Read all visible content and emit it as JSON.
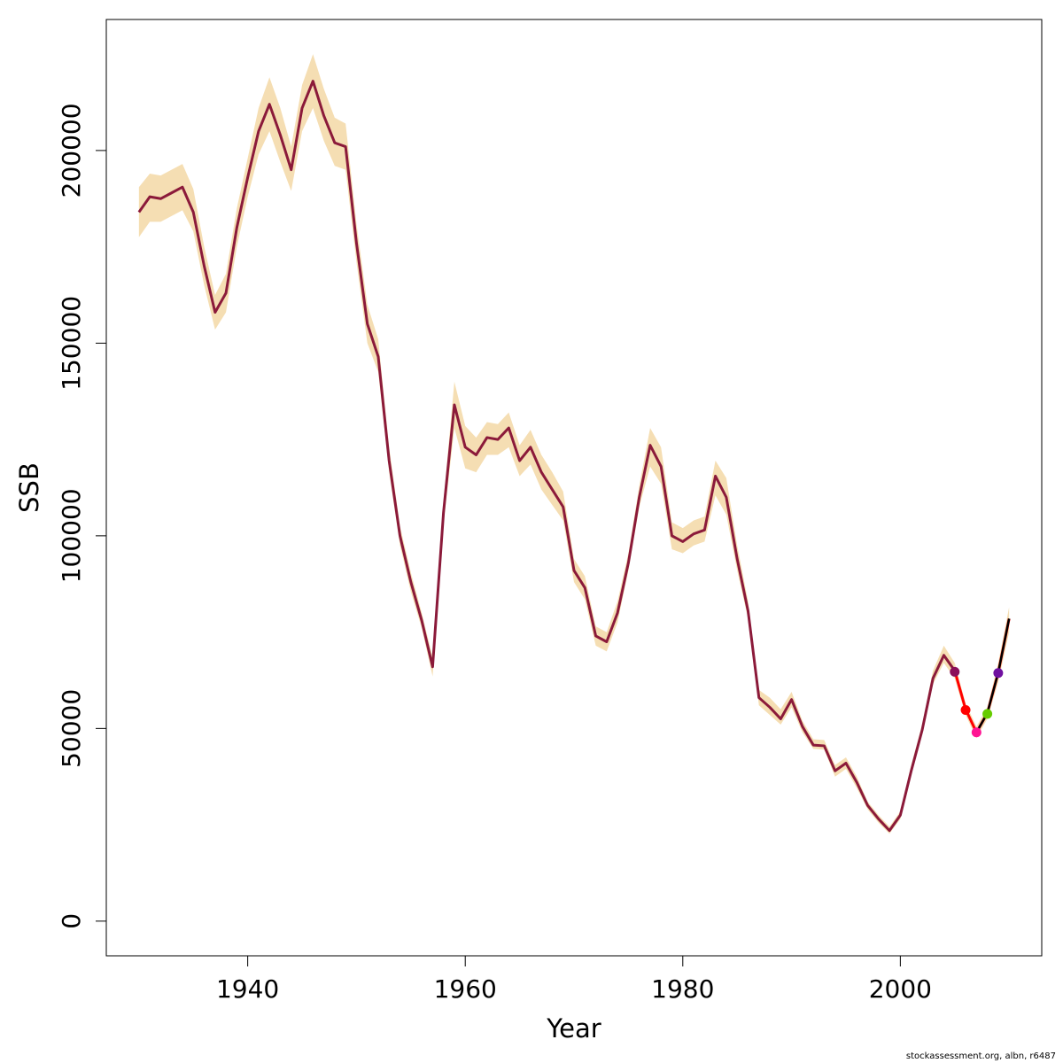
{
  "chart_data": {
    "type": "line",
    "xlabel": "Year",
    "ylabel": "SSB",
    "xlim": [
      1927,
      2013
    ],
    "ylim": [
      -9000,
      234000
    ],
    "x_ticks": [
      1940,
      1960,
      1980,
      2000
    ],
    "x_tick_labels": [
      "1940",
      "1960",
      "1980",
      "2000"
    ],
    "y_ticks": [
      0,
      50000,
      100000,
      150000,
      200000
    ],
    "y_tick_labels": [
      "0",
      "50000",
      "100000",
      "150000",
      "200000"
    ],
    "grid": false,
    "colors": {
      "line": "#8b1a3a",
      "band": "#f5deb3",
      "projection": "#000000",
      "projection_red": "#ff0000"
    },
    "series": [
      {
        "x": [
          1930,
          1931,
          1932,
          1933,
          1934,
          1935,
          1936,
          1937,
          1938,
          1939,
          1940,
          1941,
          1942,
          1943,
          1944,
          1945,
          1946,
          1947,
          1948,
          1949,
          1950,
          1951,
          1952,
          1953,
          1954,
          1955,
          1956,
          1957,
          1958,
          1959,
          1960,
          1961,
          1962,
          1963,
          1964,
          1965,
          1966,
          1967,
          1968,
          1969,
          1970,
          1971,
          1972,
          1973,
          1974,
          1975,
          1976,
          1977,
          1978,
          1979,
          1980,
          1981,
          1982,
          1983,
          1984,
          1985,
          1986,
          1987,
          1988,
          1989,
          1990,
          1991,
          1992,
          1993,
          1994,
          1995,
          1996,
          1997,
          1998,
          1999,
          2000,
          2001,
          2002,
          2003,
          2004,
          2005
        ],
        "values": [
          184000,
          188000,
          187500,
          189000,
          190500,
          184000,
          170000,
          158000,
          163000,
          180000,
          193000,
          205000,
          212000,
          204000,
          195000,
          211000,
          218000,
          209000,
          202000,
          201000,
          176000,
          155000,
          146500,
          119500,
          100000,
          88000,
          78000,
          66000,
          106000,
          134000,
          123000,
          121000,
          125500,
          125000,
          128000,
          119500,
          123000,
          116500,
          112000,
          107500,
          91000,
          86500,
          74000,
          72500,
          80000,
          93000,
          110000,
          123500,
          118000,
          100000,
          98500,
          100500,
          101500,
          115500,
          110000,
          94000,
          80500,
          58000,
          55500,
          52500,
          57500,
          50500,
          45700,
          45500,
          39000,
          41000,
          36000,
          30000,
          26500,
          23500,
          27500,
          39000,
          49500,
          63000,
          69000,
          65000
        ]
      }
    ],
    "band": {
      "lower": [
        177500,
        181500,
        181500,
        183000,
        184500,
        179000,
        165000,
        153500,
        158000,
        175000,
        188000,
        199000,
        205000,
        197000,
        189500,
        205000,
        211000,
        202500,
        196000,
        195000,
        171000,
        150000,
        142500,
        116500,
        97500,
        85500,
        76000,
        63500,
        103000,
        128000,
        117500,
        116500,
        121000,
        121000,
        123000,
        115500,
        118500,
        112000,
        108000,
        104000,
        88000,
        83500,
        71500,
        70000,
        77500,
        91000,
        107500,
        118000,
        113500,
        96500,
        95500,
        97500,
        98500,
        110500,
        105500,
        91000,
        78500,
        56000,
        53500,
        51000,
        55500,
        49000,
        44700,
        44500,
        37500,
        39500,
        34500,
        29000,
        25500,
        22700,
        26500,
        38000,
        48500,
        61500,
        67000,
        63000
      ],
      "upper": [
        190500,
        194000,
        193500,
        195000,
        196500,
        190000,
        175000,
        162500,
        168000,
        185000,
        198000,
        211000,
        219000,
        211000,
        201000,
        217000,
        225000,
        216000,
        208500,
        207000,
        181000,
        160000,
        151000,
        123000,
        102500,
        90500,
        80000,
        68500,
        109000,
        140000,
        128500,
        125500,
        129500,
        129000,
        132000,
        123500,
        127500,
        121000,
        116500,
        111500,
        94000,
        89500,
        76500,
        75000,
        83000,
        95500,
        113000,
        128000,
        123000,
        103500,
        102000,
        104000,
        105000,
        119500,
        115000,
        97500,
        83000,
        60000,
        58000,
        55000,
        59500,
        52000,
        47200,
        47000,
        40500,
        42500,
        37500,
        31000,
        27500,
        24500,
        28500,
        40500,
        51000,
        65000,
        71500,
        67000
      ]
    },
    "projection": {
      "x": [
        2005,
        2006,
        2007,
        2008,
        2009,
        2010
      ],
      "values": [
        65000,
        55000,
        49000,
        54000,
        64500,
        78500
      ],
      "lower": [
        63000,
        53500,
        47500,
        52500,
        62000,
        75000
      ],
      "upper": [
        67000,
        56500,
        50500,
        55500,
        67000,
        81500
      ]
    },
    "points": [
      {
        "x": 2005,
        "y": 64700,
        "color": "#8b0f5a"
      },
      {
        "x": 2006,
        "y": 54800,
        "color": "#ff0000"
      },
      {
        "x": 2007,
        "y": 49000,
        "color": "#ff1493"
      },
      {
        "x": 2008,
        "y": 53800,
        "color": "#66cc00"
      },
      {
        "x": 2009,
        "y": 64400,
        "color": "#7010a0"
      }
    ]
  },
  "footer": {
    "caption": "stockassessment.org, albn, r6487"
  }
}
